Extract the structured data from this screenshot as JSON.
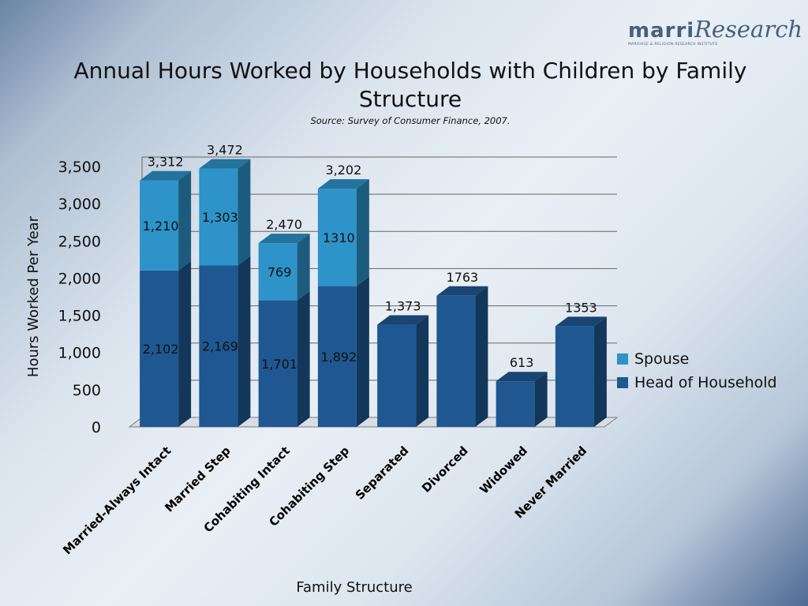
{
  "logo": {
    "brand": "marri",
    "research": "Research",
    "tagline": "MARRIAGE & RELIGION RESEARCH INSTITUTE"
  },
  "chart_data": {
    "type": "bar",
    "stacked": true,
    "three_d": true,
    "title": "Annual Hours Worked by Households with Children by Family Structure",
    "subtitle": "Source: Survey of Consumer Finance, 2007.",
    "xlabel": "Family Structure",
    "ylabel": "Hours Worked Per Year",
    "ylim": [
      0,
      3500
    ],
    "yticks": [
      0,
      500,
      1000,
      1500,
      2000,
      2500,
      3000,
      3500
    ],
    "ytick_labels": [
      "0",
      "500",
      "1,000",
      "1,500",
      "2,000",
      "2,500",
      "3,000",
      "3,500"
    ],
    "grid": true,
    "legend_position": "right",
    "categories": [
      "Married-Always Intact",
      "Married Step",
      "Cohabiting Intact",
      "Cohabiting Step",
      "Separated",
      "Divorced",
      "Widowed",
      "Never Married"
    ],
    "series": [
      {
        "name": "Head of Household",
        "color": "#1f5891",
        "values": [
          2102,
          2169,
          1701,
          1892,
          1373,
          1763,
          613,
          1353
        ],
        "labels": [
          "2,102",
          "2,169",
          "1,701",
          "1,892",
          "",
          "",
          "",
          ""
        ]
      },
      {
        "name": "Spouse",
        "color": "#2d93c8",
        "values": [
          1210,
          1303,
          769,
          1310,
          null,
          null,
          null,
          null
        ],
        "labels": [
          "1,210",
          "1,303",
          "769",
          "1310",
          "",
          "",
          "",
          ""
        ]
      }
    ],
    "totals": [
      3312,
      3472,
      2470,
      3202,
      1373,
      1763,
      613,
      1353
    ],
    "total_labels": [
      "3,312",
      "3,472",
      "2,470",
      "3,202",
      "1,373",
      "1763",
      "613",
      "1353"
    ],
    "legend": [
      "Spouse",
      "Head of Household"
    ]
  }
}
